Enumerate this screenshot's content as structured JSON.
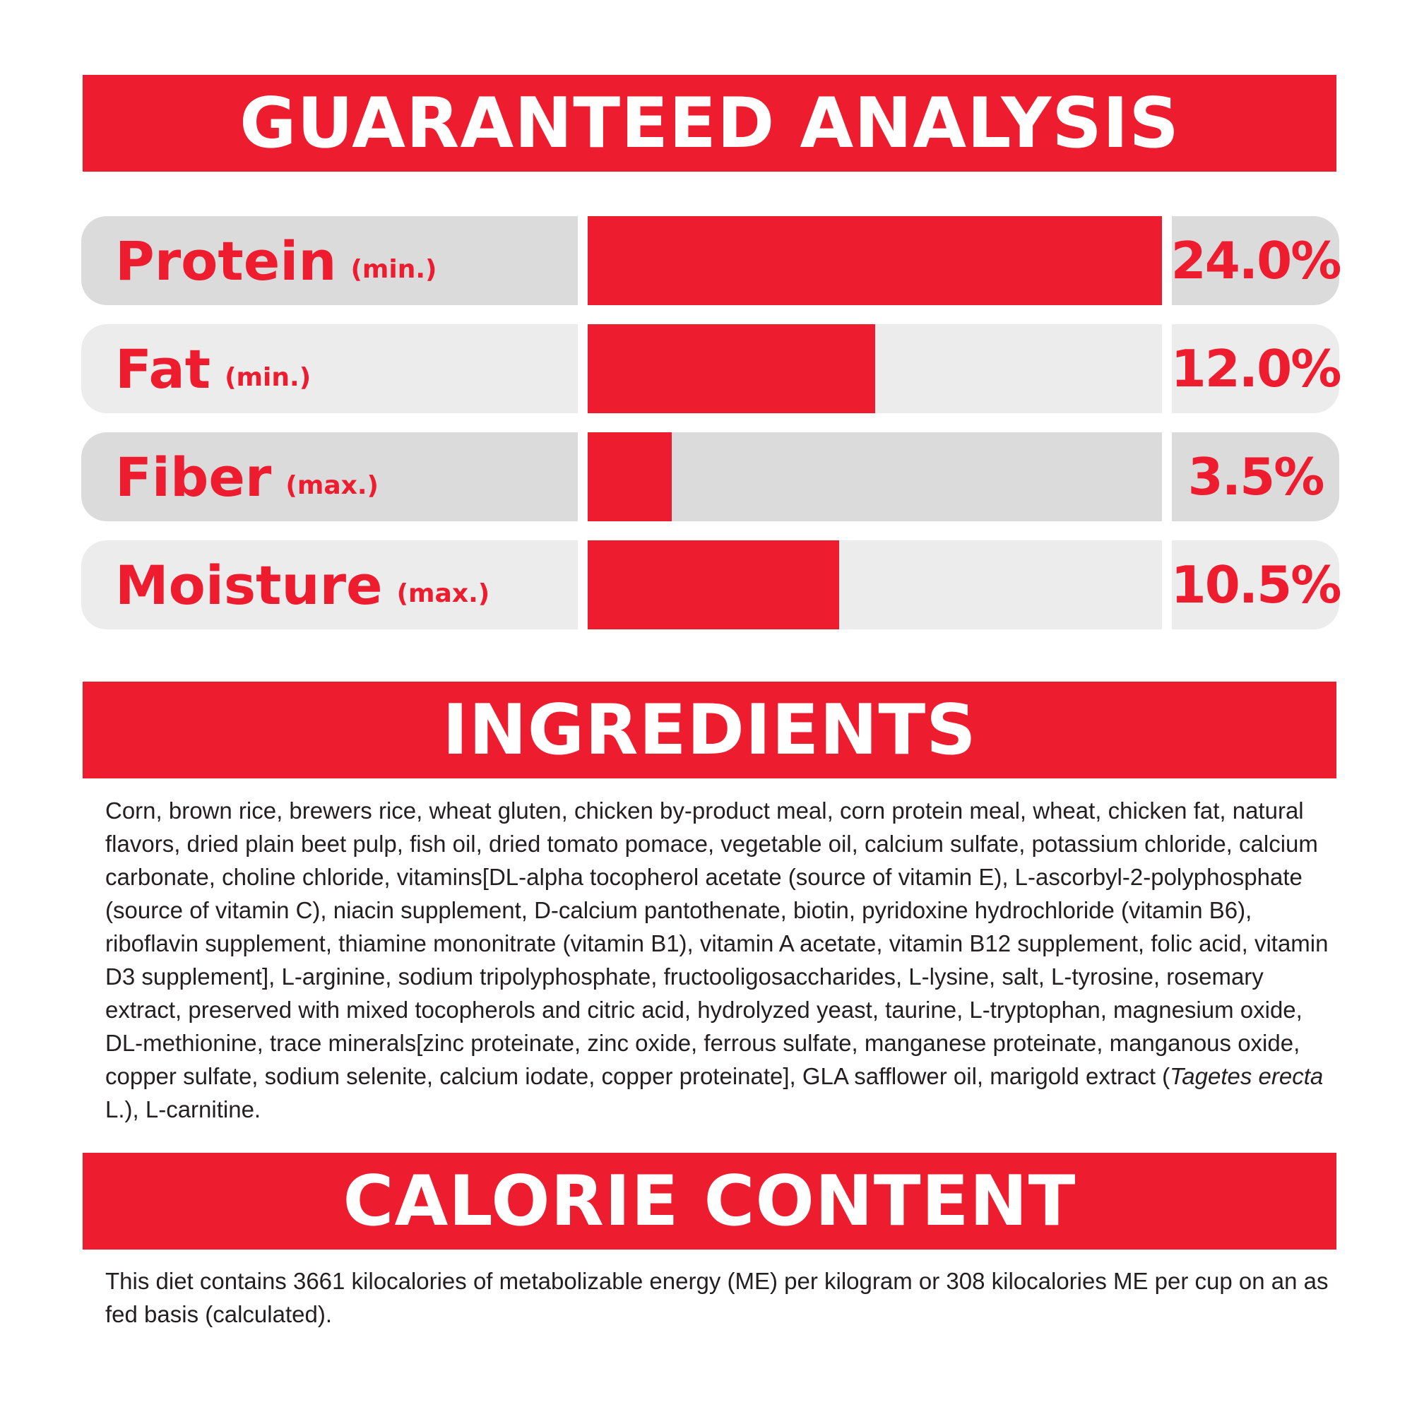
{
  "accent_color": "#ed1c2e",
  "analysis": {
    "title": "GUARANTEED ANALYSIS",
    "max_percent": 24.0,
    "rows": [
      {
        "name": "Protein",
        "qualifier": "(min.)",
        "value_label": "24.0%",
        "value": 24.0,
        "shade": "dark"
      },
      {
        "name": "Fat",
        "qualifier": "(min.)",
        "value_label": "12.0%",
        "value": 12.0,
        "shade": "light"
      },
      {
        "name": "Fiber",
        "qualifier": "(max.)",
        "value_label": "3.5%",
        "value": 3.5,
        "shade": "dark"
      },
      {
        "name": "Moisture",
        "qualifier": "(max.)",
        "value_label": "10.5%",
        "value": 10.5,
        "shade": "light"
      }
    ]
  },
  "ingredients": {
    "title": "INGREDIENTS",
    "text_before": "Corn, brown rice, brewers rice, wheat gluten, chicken by-product meal, corn protein meal, wheat, chicken fat, natural flavors, dried plain beet pulp, fish oil, dried tomato pomace, vegetable oil, calcium sulfate, potassium chloride, calcium carbonate, choline chloride, vitamins[DL-alpha tocopherol acetate (source of vitamin E), L-ascorbyl-2-polyphosphate (source of vitamin C), niacin supplement, D-calcium pantothenate, biotin, pyridoxine hydrochloride (vitamin B6), riboflavin supplement, thiamine mononitrate (vitamin B1), vitamin A acetate, vitamin B12 supplement, folic acid, vitamin D3 supplement], L-arginine, sodium tripolyphosphate, fructooligosaccharides, L-lysine, salt, L-tyrosine, rosemary extract, preserved with mixed tocopherols and citric acid, hydrolyzed yeast, taurine, L-tryptophan, magnesium oxide, DL-methionine, trace minerals[zinc proteinate, zinc oxide, ferrous sulfate, manganese proteinate, manganous oxide, copper sulfate, sodium selenite, calcium iodate, copper proteinate], GLA safflower oil, marigold extract (",
    "text_italic": "Tagetes erecta",
    "text_after": " L.), L-carnitine."
  },
  "calories": {
    "title": "CALORIE CONTENT",
    "text": "This diet contains 3661 kilocalories of metabolizable energy (ME) per kilogram or 308 kilocalories ME per cup on an as fed basis (calculated)."
  }
}
